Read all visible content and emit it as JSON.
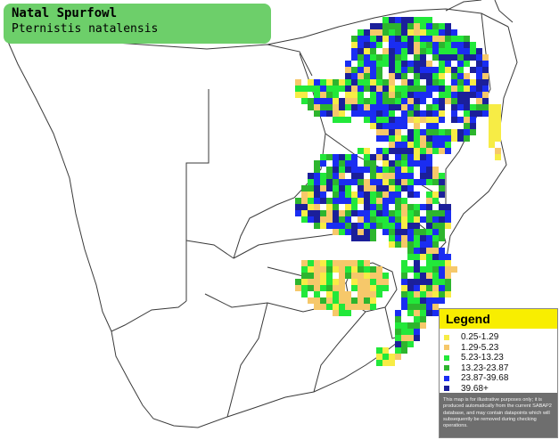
{
  "title": {
    "common_name": "Natal Spurfowl",
    "scientific_name": "Pternistis natalensis"
  },
  "legend": {
    "heading": "Legend",
    "items": [
      {
        "label": "0.25-1.29",
        "color": "#f7ec45"
      },
      {
        "label": "1.29-5.23",
        "color": "#f6c86a"
      },
      {
        "label": "5.23-13.23",
        "color": "#22e83a"
      },
      {
        "label": "13.23-23.87",
        "color": "#2db52e"
      },
      {
        "label": "23.87-39.68",
        "color": "#1a2df2"
      },
      {
        "label": "39.68+",
        "color": "#1b1f9a"
      }
    ],
    "disclaimer": "This map is for illustrative purposes only; it is produced automatically from the current SABAP2 database, and may contain datapoints which will subsequently be removed during checking operations."
  },
  "colors": {
    "title_box": "#6dcf6a",
    "legend_header": "#f8ee00",
    "border_lines": "#333333"
  }
}
